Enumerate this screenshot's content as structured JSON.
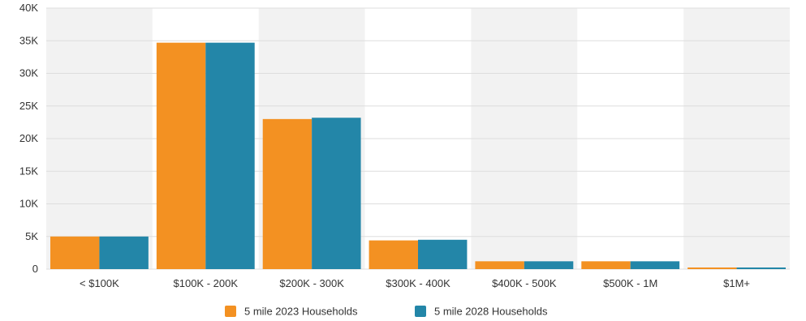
{
  "chart_data": {
    "type": "bar",
    "categories": [
      "< $100K",
      "$100K - 200K",
      "$200K - 300K",
      "$300K - 400K",
      "$400K - 500K",
      "$500K - 1M",
      "$1M+"
    ],
    "series": [
      {
        "name": "5 mile 2023 Households",
        "color": "#f39122",
        "values": [
          5000,
          34700,
          23000,
          4400,
          1200,
          1200,
          250
        ]
      },
      {
        "name": "5 mile 2028 Households",
        "color": "#2386a8",
        "values": [
          5000,
          34700,
          23200,
          4500,
          1200,
          1200,
          250
        ]
      }
    ],
    "ylim": [
      0,
      40000
    ],
    "yticks": [
      0,
      5000,
      10000,
      15000,
      20000,
      25000,
      30000,
      35000,
      40000
    ],
    "ytick_labels": [
      "0",
      "5K",
      "10K",
      "15K",
      "20K",
      "25K",
      "30K",
      "35K",
      "40K"
    ],
    "title": "",
    "xlabel": "",
    "ylabel": "",
    "grid": true,
    "legend_position": "bottom-center",
    "band_colors": [
      "#f2f2f2",
      "#ffffff"
    ],
    "grid_color": "#dddddd"
  }
}
